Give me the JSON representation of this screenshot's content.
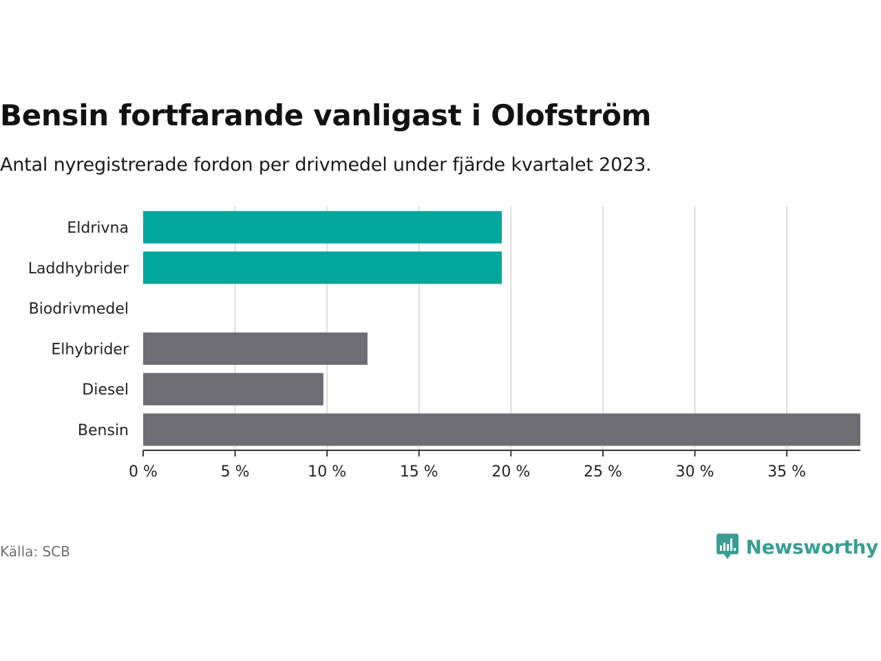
{
  "title": "Bensin fortfarande vanligast i Olofström",
  "subtitle": "Antal nyregistrerade fordon per drivmedel under fjärde kvartalet 2023.",
  "source": "Källa: SCB",
  "brand": {
    "name": "Newsworthy",
    "icon": "newsworthy-logo-icon",
    "color": "#3a9e94"
  },
  "colors": {
    "highlight": "#00a59b",
    "default": "#6e6d73",
    "grid": "#dddddd",
    "axis": "#333333"
  },
  "chart_data": {
    "type": "bar",
    "orientation": "horizontal",
    "categories": [
      "Eldrivna",
      "Laddhybrider",
      "Biodrivmedel",
      "Elhybrider",
      "Diesel",
      "Bensin"
    ],
    "values": [
      19.5,
      19.5,
      0,
      12.2,
      9.8,
      39
    ],
    "highlighted": [
      true,
      true,
      true,
      false,
      false,
      false
    ],
    "xlim": [
      0,
      39
    ],
    "xticks": [
      0,
      5,
      10,
      15,
      20,
      25,
      30,
      35
    ],
    "tick_labels": [
      "0 %",
      "5 %",
      "10 %",
      "15 %",
      "20 %",
      "25 %",
      "30 %",
      "35 %"
    ],
    "grid": true,
    "xlabel": "",
    "ylabel": ""
  }
}
